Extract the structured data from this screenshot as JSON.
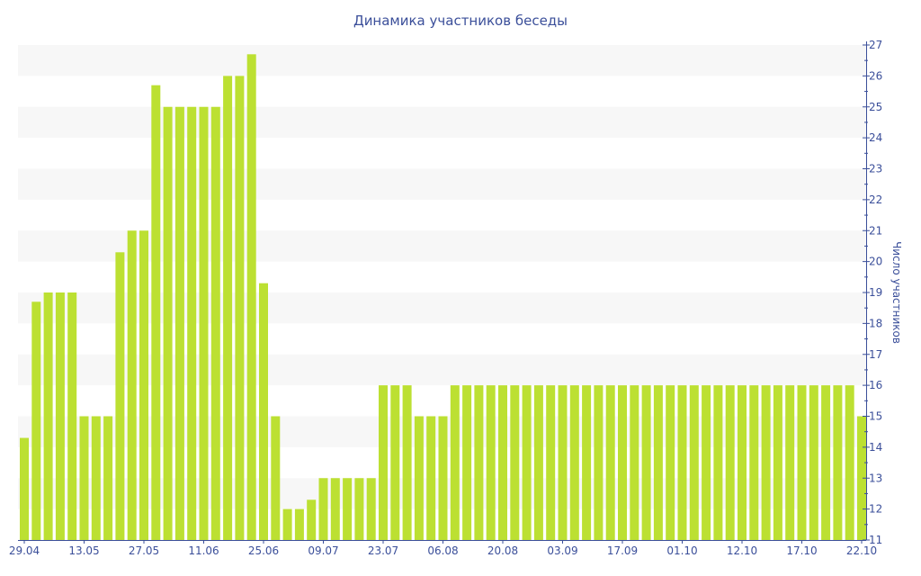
{
  "chart_data": {
    "type": "bar",
    "title": "Динамика участников беседы",
    "ylabel": "Число участников",
    "xlabel": "",
    "ylim": [
      11,
      27
    ],
    "y_axis_side": "right",
    "yticks": [
      11,
      12,
      13,
      14,
      15,
      16,
      17,
      18,
      19,
      20,
      21,
      22,
      23,
      24,
      25,
      26,
      27
    ],
    "xticks": [
      {
        "index": 0,
        "label": "29.04"
      },
      {
        "index": 5,
        "label": "13.05"
      },
      {
        "index": 10,
        "label": "27.05"
      },
      {
        "index": 15,
        "label": "11.06"
      },
      {
        "index": 20,
        "label": "25.06"
      },
      {
        "index": 25,
        "label": "09.07"
      },
      {
        "index": 30,
        "label": "23.07"
      },
      {
        "index": 35,
        "label": "06.08"
      },
      {
        "index": 40,
        "label": "20.08"
      },
      {
        "index": 45,
        "label": "03.09"
      },
      {
        "index": 50,
        "label": "17.09"
      },
      {
        "index": 55,
        "label": "01.10"
      },
      {
        "index": 60,
        "label": "12.10"
      },
      {
        "index": 65,
        "label": "17.10"
      },
      {
        "index": 70,
        "label": "22.10"
      }
    ],
    "values": [
      14.3,
      18.7,
      19,
      19,
      19,
      15,
      15,
      15,
      20.3,
      21,
      21,
      25.7,
      25,
      25,
      25,
      25,
      25,
      26,
      26,
      26.7,
      19.3,
      15,
      12,
      12,
      12.3,
      13,
      13,
      13,
      13,
      13,
      16,
      16,
      16,
      15,
      15,
      15,
      16,
      16,
      16,
      16,
      16,
      16,
      16,
      16,
      16,
      16,
      16,
      16,
      16,
      16,
      16,
      16,
      16,
      16,
      16,
      16,
      16,
      16,
      16,
      16,
      16,
      16,
      16,
      16,
      16,
      16,
      16,
      16,
      16,
      16,
      15
    ],
    "bar_color": "#bce032",
    "band_color": "#f7f7f7",
    "axis_color": "#3b4f9a",
    "grid": "alternating horizontal bands"
  }
}
